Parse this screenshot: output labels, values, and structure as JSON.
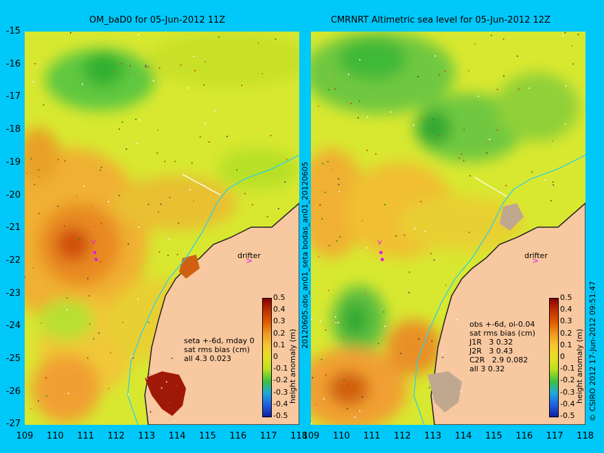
{
  "left_panel": {
    "title": "OM_baD0 for 05-Jun-2012 11Z",
    "stats": [
      "seta +-6d, mday 0",
      "sat rms bias (cm)",
      "all 4.3 0.023"
    ],
    "drifter_label": "drifter",
    "colorbar_label": "height anomaly (m)"
  },
  "right_panel": {
    "title": "CMRNRT Altimetric sea level  for 05-Jun-2012 12Z",
    "stats": [
      "obs +-6d, oi-0.04",
      "sat rms bias (cm)",
      "J1R   3 0.32",
      "J2R   3 0.43",
      "C2R   2.9 0.082",
      "all 3 0.32"
    ],
    "drifter_label": "drifter",
    "colorbar_label": "height anomaly (m)"
  },
  "axes": {
    "y_ticks": [
      "-15",
      "-16",
      "-17",
      "-18",
      "-19",
      "-20",
      "-21",
      "-22",
      "-23",
      "-24",
      "-25",
      "-26",
      "-27"
    ],
    "x_ticks": [
      "109",
      "110",
      "111",
      "112",
      "113",
      "114",
      "115",
      "116",
      "117",
      "118"
    ]
  },
  "colorbar": {
    "ticks": [
      "0.5",
      "0.4",
      "0.3",
      "0.2",
      "0.1",
      "0",
      "-0.1",
      "-0.2",
      "-0.3",
      "-0.4",
      "-0.5"
    ],
    "colors": [
      "#8b0000",
      "#c03000",
      "#e05a00",
      "#f09a20",
      "#f5c830",
      "#e8e020",
      "#b8e020",
      "#40c040",
      "#20a8d8",
      "#2060e0",
      "#1020a0"
    ]
  },
  "center_vertical_text": "20120605.obs_an01_seta   bodas_an01_20120605",
  "credit": "© CSIRO 2012   17-Jun-2012 09:51:47"
}
